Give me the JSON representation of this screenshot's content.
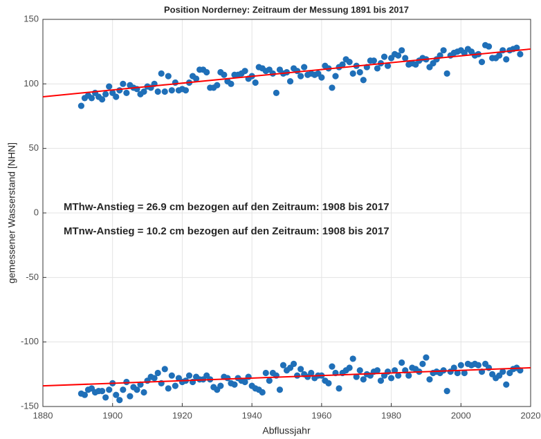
{
  "chart_data": {
    "type": "scatter",
    "title": "Position Norderney: Zeitraum der Messung 1891 bis 2017",
    "xlabel": "Abflussjahr",
    "ylabel": "gemessener Wasserstand [NHN]",
    "annotations": [
      "MThw-Anstieg = 26.9 cm bezogen auf den Zeitraum: 1908 bis 2017",
      "MTnw-Anstieg = 10.2 cm bezogen auf den Zeitraum: 1908 bis 2017"
    ],
    "x": [
      1891,
      1892,
      1893,
      1894,
      1895,
      1896,
      1897,
      1898,
      1899,
      1900,
      1901,
      1902,
      1903,
      1904,
      1905,
      1906,
      1907,
      1908,
      1909,
      1910,
      1911,
      1912,
      1913,
      1914,
      1915,
      1916,
      1917,
      1918,
      1919,
      1920,
      1921,
      1922,
      1923,
      1924,
      1925,
      1926,
      1927,
      1928,
      1929,
      1930,
      1931,
      1932,
      1933,
      1934,
      1935,
      1936,
      1937,
      1938,
      1939,
      1940,
      1941,
      1942,
      1943,
      1944,
      1945,
      1946,
      1947,
      1948,
      1949,
      1950,
      1951,
      1952,
      1953,
      1954,
      1955,
      1956,
      1957,
      1958,
      1959,
      1960,
      1961,
      1962,
      1963,
      1964,
      1965,
      1966,
      1967,
      1968,
      1969,
      1970,
      1971,
      1972,
      1973,
      1974,
      1975,
      1976,
      1977,
      1978,
      1979,
      1980,
      1981,
      1982,
      1983,
      1984,
      1985,
      1986,
      1987,
      1988,
      1989,
      1990,
      1991,
      1992,
      1993,
      1994,
      1995,
      1996,
      1997,
      1998,
      1999,
      2000,
      2001,
      2002,
      2003,
      2004,
      2005,
      2006,
      2007,
      2008,
      2009,
      2010,
      2011,
      2012,
      2013,
      2014,
      2015,
      2016,
      2017
    ],
    "series": [
      {
        "color": "#1f6fb8",
        "values": [
          83,
          89,
          91,
          89,
          93,
          90,
          88,
          92,
          98,
          93,
          90,
          95,
          100,
          93,
          99,
          97,
          96,
          92,
          94,
          98,
          97,
          100,
          94,
          108,
          94,
          106,
          95,
          101,
          95,
          96,
          95,
          101,
          106,
          104,
          111,
          111,
          109,
          97,
          97,
          99,
          109,
          107,
          102,
          100,
          107,
          107,
          108,
          110,
          104,
          106,
          101,
          113,
          112,
          110,
          111,
          108,
          93,
          111,
          108,
          109,
          102,
          112,
          110,
          106,
          113,
          107,
          108,
          107,
          108,
          105,
          114,
          112,
          97,
          106,
          113,
          115,
          119,
          117,
          108,
          114,
          109,
          103,
          113,
          118,
          118,
          112,
          116,
          121,
          114,
          120,
          123,
          122,
          126,
          120,
          115,
          116,
          115,
          118,
          120,
          119,
          113,
          116,
          119,
          122,
          126,
          108,
          122,
          124,
          125,
          126,
          124,
          127,
          125,
          122,
          123,
          117,
          130,
          129,
          120,
          120,
          122,
          126,
          119,
          126,
          127,
          128,
          123
        ]
      },
      {
        "color": "#1f6fb8",
        "values": [
          -140,
          -141,
          -137,
          -136,
          -139,
          -138,
          -138,
          -143,
          -137,
          -132,
          -141,
          -145,
          -137,
          -131,
          -142,
          -135,
          -137,
          -133,
          -139,
          -130,
          -127,
          -128,
          -124,
          -132,
          -121,
          -136,
          -126,
          -134,
          -128,
          -131,
          -130,
          -126,
          -131,
          -127,
          -129,
          -129,
          -126,
          -129,
          -135,
          -137,
          -134,
          -127,
          -128,
          -132,
          -133,
          -128,
          -130,
          -131,
          -127,
          -134,
          -136,
          -137,
          -139,
          -124,
          -130,
          -124,
          -126,
          -137,
          -118,
          -122,
          -120,
          -117,
          -126,
          -121,
          -125,
          -127,
          -124,
          -128,
          -126,
          -126,
          -130,
          -132,
          -119,
          -124,
          -136,
          -124,
          -122,
          -120,
          -113,
          -127,
          -122,
          -129,
          -125,
          -126,
          -123,
          -122,
          -130,
          -126,
          -123,
          -128,
          -122,
          -126,
          -116,
          -122,
          -126,
          -120,
          -121,
          -123,
          -117,
          -112,
          -129,
          -124,
          -123,
          -124,
          -122,
          -138,
          -123,
          -120,
          -124,
          -118,
          -124,
          -117,
          -118,
          -117,
          -118,
          -123,
          -117,
          -120,
          -125,
          -128,
          -126,
          -123,
          -133,
          -124,
          -121,
          -120,
          -122
        ]
      }
    ],
    "trend_lines": [
      {
        "color": "#ff0000",
        "x": [
          1880,
          2020
        ],
        "values": [
          90,
          127
        ]
      },
      {
        "color": "#ff0000",
        "x": [
          1880,
          2020
        ],
        "values": [
          -134,
          -120
        ]
      }
    ],
    "xlim": [
      1880,
      2020
    ],
    "xticks": [
      1880,
      1900,
      1920,
      1940,
      1960,
      1980,
      2000,
      2020
    ],
    "ylim": [
      -150,
      150
    ],
    "yticks": [
      -150,
      -100,
      -50,
      0,
      50,
      100,
      150
    ],
    "grid": true
  }
}
